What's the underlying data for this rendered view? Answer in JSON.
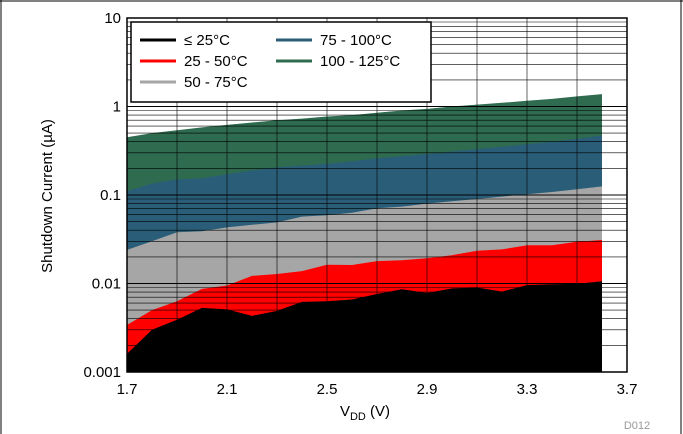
{
  "figure_id": "D012",
  "chart_data": {
    "type": "area",
    "title": "",
    "xlabel": "V",
    "xlabel_sub": "DD",
    "xlabel_unit": " (V)",
    "ylabel": "Shutdown Current (µA)",
    "xlim": [
      1.7,
      3.7
    ],
    "ylim": [
      0.001,
      10
    ],
    "yscale": "log",
    "grid": true,
    "legend_position": "top-left",
    "x_ticks": [
      "1.7",
      "2.1",
      "2.5",
      "2.9",
      "3.3",
      "3.7"
    ],
    "y_ticks": [
      "0.001",
      "0.01",
      "0.1",
      "1",
      "10"
    ],
    "x": [
      1.7,
      1.8,
      1.9,
      2.0,
      2.1,
      2.2,
      2.3,
      2.4,
      2.5,
      2.6,
      2.7,
      2.8,
      2.9,
      3.0,
      3.1,
      3.2,
      3.3,
      3.4,
      3.5,
      3.6
    ],
    "series": [
      {
        "name": "≤ 25°C",
        "color": "#000000",
        "values": [
          0.0016,
          0.003,
          0.0039,
          0.0053,
          0.0051,
          0.0043,
          0.0049,
          0.0062,
          0.0063,
          0.0066,
          0.0076,
          0.0086,
          0.0078,
          0.0088,
          0.009,
          0.0081,
          0.0096,
          0.0098,
          0.0099,
          0.0106
        ]
      },
      {
        "name": "25 - 50°C",
        "color": "#ff0000",
        "values": [
          0.0034,
          0.005,
          0.0063,
          0.0087,
          0.0095,
          0.0122,
          0.0128,
          0.0138,
          0.0163,
          0.0162,
          0.0179,
          0.0183,
          0.0193,
          0.0209,
          0.0235,
          0.0243,
          0.0271,
          0.0271,
          0.0296,
          0.031
        ]
      },
      {
        "name": "50 - 75°C",
        "color": "#a6a6a6",
        "values": [
          0.024,
          0.03,
          0.038,
          0.039,
          0.043,
          0.046,
          0.049,
          0.057,
          0.059,
          0.063,
          0.071,
          0.074,
          0.08,
          0.085,
          0.09,
          0.096,
          0.102,
          0.108,
          0.116,
          0.125
        ]
      },
      {
        "name": "75 - 100°C",
        "color": "#2a5e78",
        "values": [
          0.11,
          0.135,
          0.15,
          0.155,
          0.172,
          0.19,
          0.205,
          0.215,
          0.225,
          0.24,
          0.26,
          0.275,
          0.29,
          0.31,
          0.33,
          0.35,
          0.375,
          0.4,
          0.43,
          0.47
        ]
      },
      {
        "name": "100 - 125°C",
        "color": "#2e6b4f",
        "values": [
          0.45,
          0.5,
          0.54,
          0.58,
          0.62,
          0.66,
          0.7,
          0.73,
          0.77,
          0.8,
          0.85,
          0.9,
          0.94,
          1.0,
          1.05,
          1.1,
          1.16,
          1.22,
          1.3,
          1.38
        ]
      }
    ]
  }
}
